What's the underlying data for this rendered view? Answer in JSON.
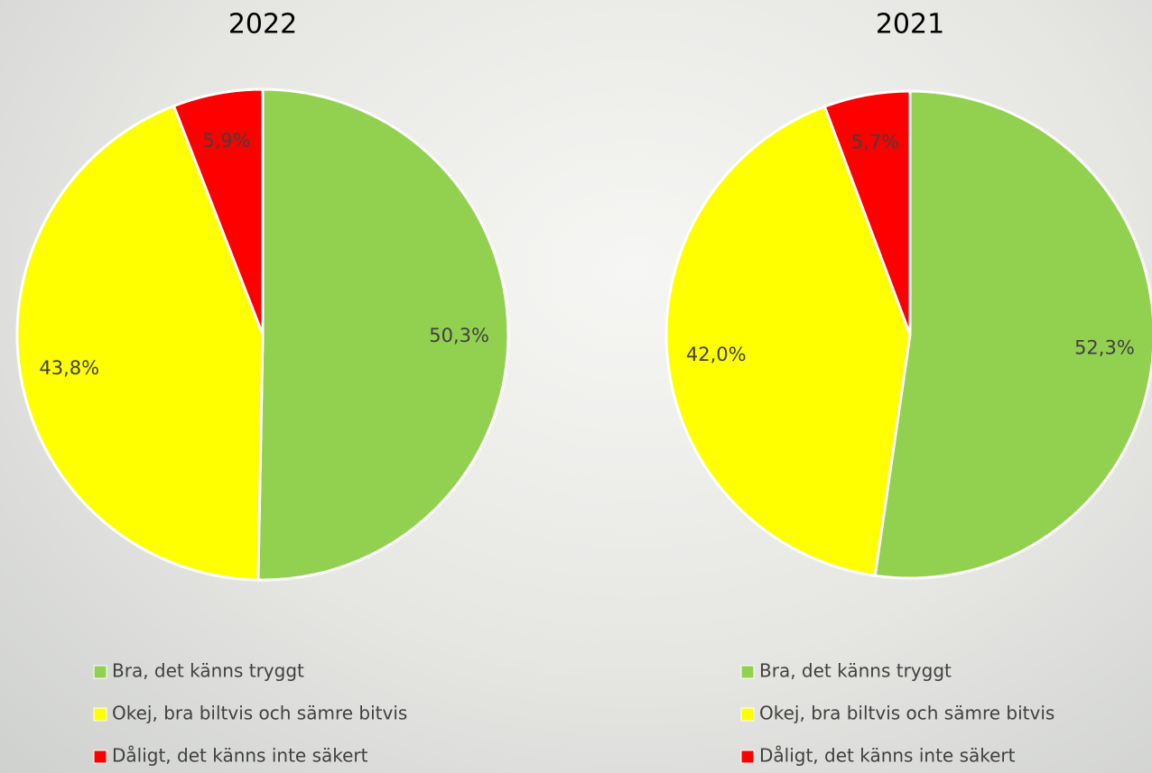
{
  "chart_data": [
    {
      "type": "pie",
      "title": "2022",
      "categories": [
        "Bra, det känns tryggt",
        "Okej, bra biltvis och sämre bitvis",
        "Dåligt, det känns inte säkert"
      ],
      "values": [
        50.3,
        43.8,
        5.9
      ],
      "value_labels": [
        "50,3%",
        "43,8%",
        "5,9%"
      ],
      "colors": [
        "#92d050",
        "#ffff00",
        "#ff0000"
      ]
    },
    {
      "type": "pie",
      "title": "2021",
      "categories": [
        "Bra, det känns tryggt",
        "Okej, bra biltvis och sämre bitvis",
        "Dåligt, det känns inte säkert"
      ],
      "values": [
        52.3,
        42.0,
        5.7
      ],
      "value_labels": [
        "52,3%",
        "42,0%",
        "5,7%"
      ],
      "colors": [
        "#92d050",
        "#ffff00",
        "#ff0000"
      ]
    }
  ]
}
